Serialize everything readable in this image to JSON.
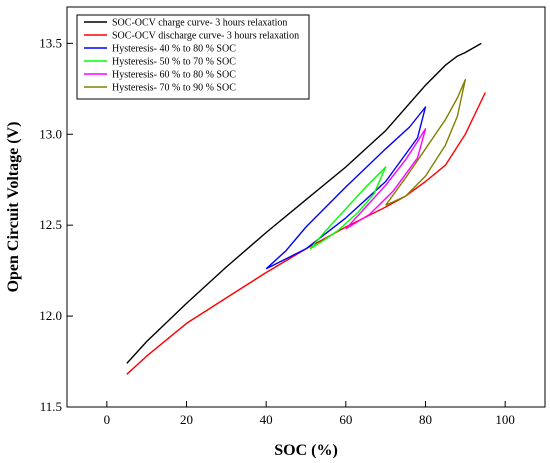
{
  "chart_data": {
    "type": "line",
    "title": "",
    "xlabel": "SOC (%)",
    "ylabel": "Open Circuit Voltage (V)",
    "xlim": [
      -10,
      110
    ],
    "ylim": [
      11.5,
      13.7
    ],
    "xticks": [
      0,
      20,
      40,
      60,
      80,
      100
    ],
    "yticks": [
      11.5,
      12.0,
      12.5,
      13.0,
      13.5
    ],
    "grid": false,
    "legend_position": "top-left",
    "series": [
      {
        "name": "SOC-OCV charge curve- 3 hours relaxation",
        "color": "#000000",
        "x": [
          5,
          10,
          20,
          30,
          40,
          50,
          60,
          70,
          80,
          85,
          88,
          90,
          94
        ],
        "y": [
          11.74,
          11.86,
          12.07,
          12.27,
          12.46,
          12.64,
          12.82,
          13.02,
          13.27,
          13.38,
          13.43,
          13.45,
          13.5
        ]
      },
      {
        "name": "SOC-OCV discharge curve- 3 hours relaxation",
        "color": "#ff0000",
        "x": [
          5,
          10,
          20,
          30,
          40,
          50,
          60,
          70,
          75,
          80,
          85,
          90,
          95
        ],
        "y": [
          11.68,
          11.78,
          11.96,
          12.1,
          12.24,
          12.37,
          12.49,
          12.6,
          12.66,
          12.74,
          12.83,
          13.0,
          13.23
        ]
      },
      {
        "name": "Hysteresis- 40 % to 80 % SOC",
        "color": "#0000ff",
        "x": [
          40,
          45,
          50,
          60,
          70,
          76,
          80,
          78,
          70,
          60,
          50,
          40
        ],
        "y": [
          12.26,
          12.36,
          12.49,
          12.71,
          12.92,
          13.04,
          13.15,
          12.98,
          12.74,
          12.54,
          12.37,
          12.26
        ]
      },
      {
        "name": "Hysteresis- 50 % to 70 % SOC",
        "color": "#00ff00",
        "x": [
          51,
          55,
          60,
          65,
          70,
          67,
          63,
          58,
          54,
          51
        ],
        "y": [
          12.37,
          12.47,
          12.59,
          12.71,
          12.82,
          12.67,
          12.57,
          12.47,
          12.41,
          12.37
        ]
      },
      {
        "name": "Hysteresis- 60 % to 80 % SOC",
        "color": "#ff00ff",
        "x": [
          60,
          65,
          70,
          75,
          78,
          80,
          78,
          72,
          66,
          60
        ],
        "y": [
          12.48,
          12.6,
          12.72,
          12.86,
          12.96,
          13.03,
          12.87,
          12.69,
          12.56,
          12.48
        ]
      },
      {
        "name": "Hysteresis- 70 % to 90 % SOC",
        "color": "#808000",
        "x": [
          70,
          75,
          80,
          85,
          88,
          90,
          88,
          85,
          80,
          75,
          70
        ],
        "y": [
          12.61,
          12.76,
          12.92,
          13.08,
          13.2,
          13.3,
          13.1,
          12.94,
          12.77,
          12.66,
          12.61
        ]
      }
    ]
  }
}
